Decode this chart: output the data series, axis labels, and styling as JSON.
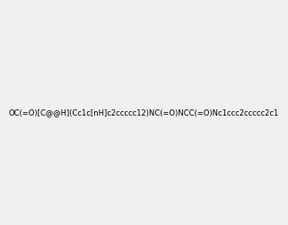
{
  "smiles": "OC(=O)[C@@H](Cc1c[nH]c2ccccc12)NC(=O)NCC(=O)Nc1ccc2ccccc2c1",
  "title": "",
  "bg_color": "#f0f0f0",
  "img_size": [
    300,
    300
  ]
}
